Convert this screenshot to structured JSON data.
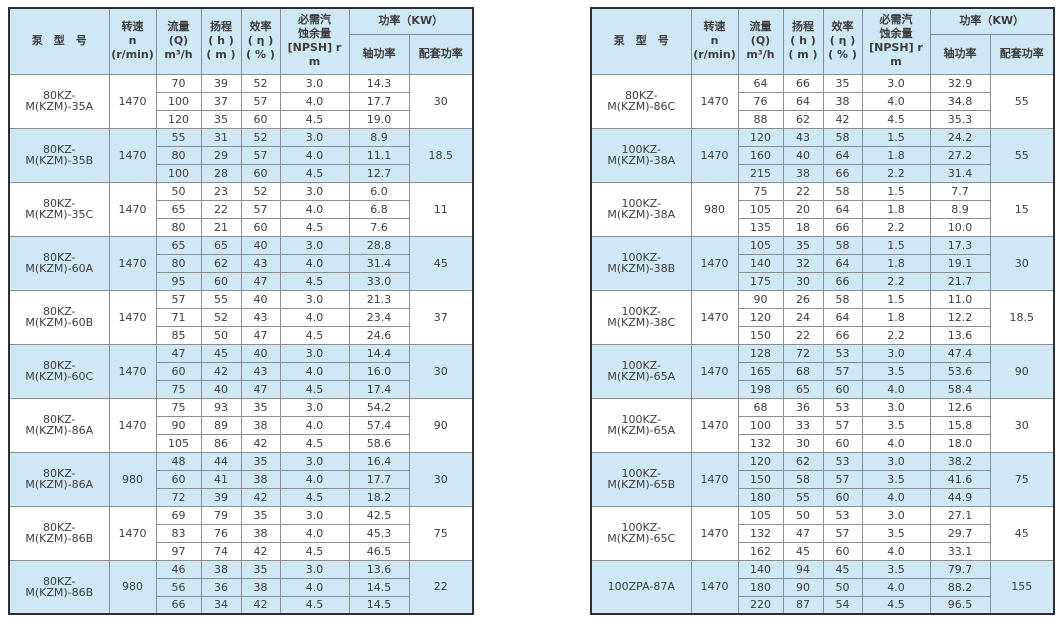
{
  "colors": {
    "row_blue": "#cfe8f5",
    "grid_line": "#8d8d8d",
    "outer_frame": "#2e2e35",
    "text": "#3d3d3d",
    "background": "#ffffff"
  },
  "headers": {
    "model": "泵　型　号",
    "speed": "转速\nn\n(r/min)",
    "flow": "流量\n(Q)\nm³/h",
    "head": "扬程\n( h )\n( m )",
    "efficiency": "效率\n( η )\n( % )",
    "npsh": "必需汽\n蚀余量\n[NPSH] r\nm",
    "power_group": "功率（KW）",
    "shaft_power": "轴功率",
    "rated_power": "配套功率"
  },
  "tables": {
    "left": {
      "groups": [
        {
          "model": "80KZ-M(KZM)-35A",
          "speed": "1470",
          "power": "30",
          "rows": [
            [
              "70",
              "39",
              "52",
              "3.0",
              "14.3"
            ],
            [
              "100",
              "37",
              "57",
              "4.0",
              "17.7"
            ],
            [
              "120",
              "35",
              "60",
              "4.5",
              "19.0"
            ]
          ]
        },
        {
          "model": "80KZ-M(KZM)-35B",
          "speed": "1470",
          "power": "18.5",
          "rows": [
            [
              "55",
              "31",
              "52",
              "3.0",
              "8.9"
            ],
            [
              "80",
              "29",
              "57",
              "4.0",
              "11.1"
            ],
            [
              "100",
              "28",
              "60",
              "4.5",
              "12.7"
            ]
          ]
        },
        {
          "model": "80KZ-M(KZM)-35C",
          "speed": "1470",
          "power": "11",
          "rows": [
            [
              "50",
              "23",
              "52",
              "3.0",
              "6.0"
            ],
            [
              "65",
              "22",
              "57",
              "4.0",
              "6.8"
            ],
            [
              "80",
              "21",
              "60",
              "4.5",
              "7.6"
            ]
          ]
        },
        {
          "model": "80KZ-M(KZM)-60A",
          "speed": "1470",
          "power": "45",
          "rows": [
            [
              "65",
              "65",
              "40",
              "3.0",
              "28.8"
            ],
            [
              "80",
              "62",
              "43",
              "4.0",
              "31.4"
            ],
            [
              "95",
              "60",
              "47",
              "4.5",
              "33.0"
            ]
          ]
        },
        {
          "model": "80KZ-M(KZM)-60B",
          "speed": "1470",
          "power": "37",
          "rows": [
            [
              "57",
              "55",
              "40",
              "3.0",
              "21.3"
            ],
            [
              "71",
              "52",
              "43",
              "4.0",
              "23.4"
            ],
            [
              "85",
              "50",
              "47",
              "4.5",
              "24.6"
            ]
          ]
        },
        {
          "model": "80KZ-M(KZM)-60C",
          "speed": "1470",
          "power": "30",
          "rows": [
            [
              "47",
              "45",
              "40",
              "3.0",
              "14.4"
            ],
            [
              "60",
              "42",
              "43",
              "4.0",
              "16.0"
            ],
            [
              "75",
              "40",
              "47",
              "4.5",
              "17.4"
            ]
          ]
        },
        {
          "model": "80KZ-M(KZM)-86A",
          "speed": "1470",
          "power": "90",
          "rows": [
            [
              "75",
              "93",
              "35",
              "3.0",
              "54.2"
            ],
            [
              "90",
              "89",
              "38",
              "4.0",
              "57.4"
            ],
            [
              "105",
              "86",
              "42",
              "4.5",
              "58.6"
            ]
          ]
        },
        {
          "model": "80KZ-M(KZM)-86A",
          "speed": "980",
          "power": "30",
          "rows": [
            [
              "48",
              "44",
              "35",
              "3.0",
              "16.4"
            ],
            [
              "60",
              "41",
              "38",
              "4.0",
              "17.7"
            ],
            [
              "72",
              "39",
              "42",
              "4.5",
              "18.2"
            ]
          ]
        },
        {
          "model": "80KZ-M(KZM)-86B",
          "speed": "1470",
          "power": "75",
          "rows": [
            [
              "69",
              "79",
              "35",
              "3.0",
              "42.5"
            ],
            [
              "83",
              "76",
              "38",
              "4.0",
              "45.3"
            ],
            [
              "97",
              "74",
              "42",
              "4.5",
              "46.5"
            ]
          ]
        },
        {
          "model": "80KZ-M(KZM)-86B",
          "speed": "980",
          "power": "22",
          "rows": [
            [
              "46",
              "38",
              "35",
              "3.0",
              "13.6"
            ],
            [
              "56",
              "36",
              "38",
              "4.0",
              "14.5"
            ],
            [
              "66",
              "34",
              "42",
              "4.5",
              "14.5"
            ]
          ]
        }
      ]
    },
    "right": {
      "groups": [
        {
          "model": "80KZ-M(KZM)-86C",
          "speed": "1470",
          "power": "55",
          "rows": [
            [
              "64",
              "66",
              "35",
              "3.0",
              "32.9"
            ],
            [
              "76",
              "64",
              "38",
              "4.0",
              "34.8"
            ],
            [
              "88",
              "62",
              "42",
              "4.5",
              "35.3"
            ]
          ]
        },
        {
          "model": "100KZ-M(KZM)-38A",
          "speed": "1470",
          "power": "55",
          "rows": [
            [
              "120",
              "43",
              "58",
              "1.5",
              "24.2"
            ],
            [
              "160",
              "40",
              "64",
              "1.8",
              "27.2"
            ],
            [
              "215",
              "38",
              "66",
              "2.2",
              "31.4"
            ]
          ]
        },
        {
          "model": "100KZ-M(KZM)-38A",
          "speed": "980",
          "power": "15",
          "rows": [
            [
              "75",
              "22",
              "58",
              "1.5",
              "7.7"
            ],
            [
              "105",
              "20",
              "64",
              "1.8",
              "8.9"
            ],
            [
              "135",
              "18",
              "66",
              "2.2",
              "10.0"
            ]
          ]
        },
        {
          "model": "100KZ-M(KZM)-38B",
          "speed": "1470",
          "power": "30",
          "rows": [
            [
              "105",
              "35",
              "58",
              "1.5",
              "17.3"
            ],
            [
              "140",
              "32",
              "64",
              "1.8",
              "19.1"
            ],
            [
              "175",
              "30",
              "66",
              "2.2",
              "21.7"
            ]
          ]
        },
        {
          "model": "100KZ-M(KZM)-38C",
          "speed": "1470",
          "power": "18.5",
          "rows": [
            [
              "90",
              "26",
              "58",
              "1.5",
              "11.0"
            ],
            [
              "120",
              "24",
              "64",
              "1.8",
              "12.2"
            ],
            [
              "150",
              "22",
              "66",
              "2.2",
              "13.6"
            ]
          ]
        },
        {
          "model": "100KZ-M(KZM)-65A",
          "speed": "1470",
          "power": "90",
          "rows": [
            [
              "128",
              "72",
              "53",
              "3.0",
              "47.4"
            ],
            [
              "165",
              "68",
              "57",
              "3.5",
              "53.6"
            ],
            [
              "198",
              "65",
              "60",
              "4.0",
              "58.4"
            ]
          ]
        },
        {
          "model": "100KZ-M(KZM)-65A",
          "speed": "1470",
          "power": "30",
          "rows": [
            [
              "68",
              "36",
              "53",
              "3.0",
              "12.6"
            ],
            [
              "100",
              "33",
              "57",
              "3.5",
              "15.8"
            ],
            [
              "132",
              "30",
              "60",
              "4.0",
              "18.0"
            ]
          ]
        },
        {
          "model": "100KZ-M(KZM)-65B",
          "speed": "1470",
          "power": "75",
          "rows": [
            [
              "120",
              "62",
              "53",
              "3.0",
              "38.2"
            ],
            [
              "150",
              "58",
              "57",
              "3.5",
              "41.6"
            ],
            [
              "180",
              "55",
              "60",
              "4.0",
              "44.9"
            ]
          ]
        },
        {
          "model": "100KZ-M(KZM)-65C",
          "speed": "1470",
          "power": "45",
          "rows": [
            [
              "105",
              "50",
              "53",
              "3.0",
              "27.1"
            ],
            [
              "132",
              "47",
              "57",
              "3.5",
              "29.7"
            ],
            [
              "162",
              "45",
              "60",
              "4.0",
              "33.1"
            ]
          ]
        },
        {
          "model": "100ZPA-87A",
          "speed": "1470",
          "power": "155",
          "rows": [
            [
              "140",
              "94",
              "45",
              "3.5",
              "79.7"
            ],
            [
              "180",
              "90",
              "50",
              "4.0",
              "88.2"
            ],
            [
              "220",
              "87",
              "54",
              "4.5",
              "96.5"
            ]
          ]
        }
      ]
    }
  }
}
